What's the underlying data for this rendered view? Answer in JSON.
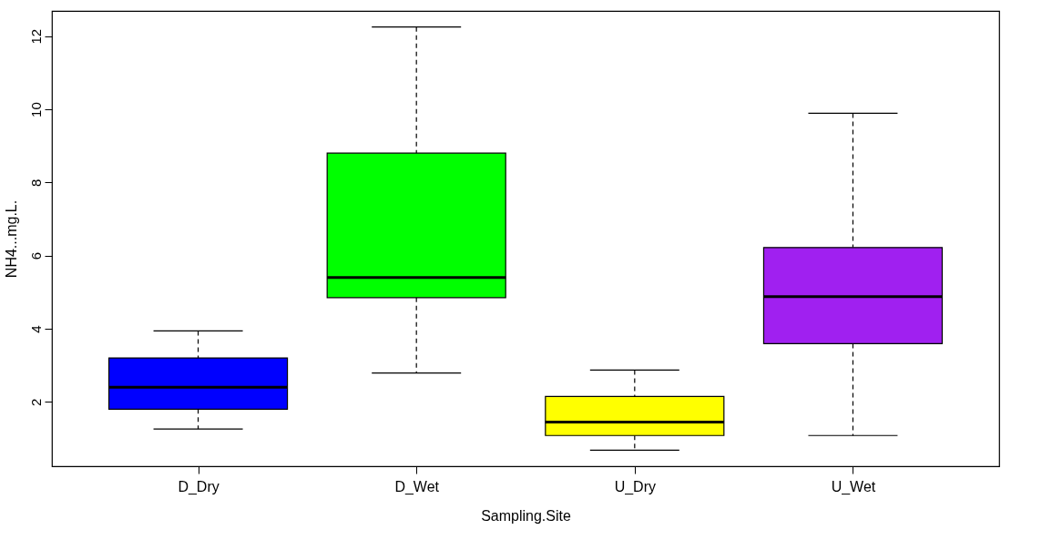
{
  "chart_data": {
    "type": "box",
    "xlabel": "Sampling.Site",
    "ylabel": "NH4...mg.L.",
    "categories": [
      "D_Dry",
      "D_Wet",
      "U_Dry",
      "U_Wet"
    ],
    "colors": [
      "#0000ff",
      "#00ff00",
      "#ffff00",
      "#a020f0"
    ],
    "boxes": [
      {
        "low": 1.26,
        "q1": 1.8,
        "median": 2.4,
        "q3": 3.2,
        "high": 3.94
      },
      {
        "low": 2.79,
        "q1": 4.85,
        "median": 5.4,
        "q3": 8.8,
        "high": 12.25
      },
      {
        "low": 0.68,
        "q1": 1.08,
        "median": 1.45,
        "q3": 2.15,
        "high": 2.87
      },
      {
        "low": 1.08,
        "q1": 3.59,
        "median": 4.88,
        "q3": 6.22,
        "high": 9.89
      }
    ],
    "ylim": [
      0.24,
      12.69
    ],
    "yticks": [
      2,
      4,
      6,
      8,
      10,
      12
    ],
    "grid": false
  }
}
